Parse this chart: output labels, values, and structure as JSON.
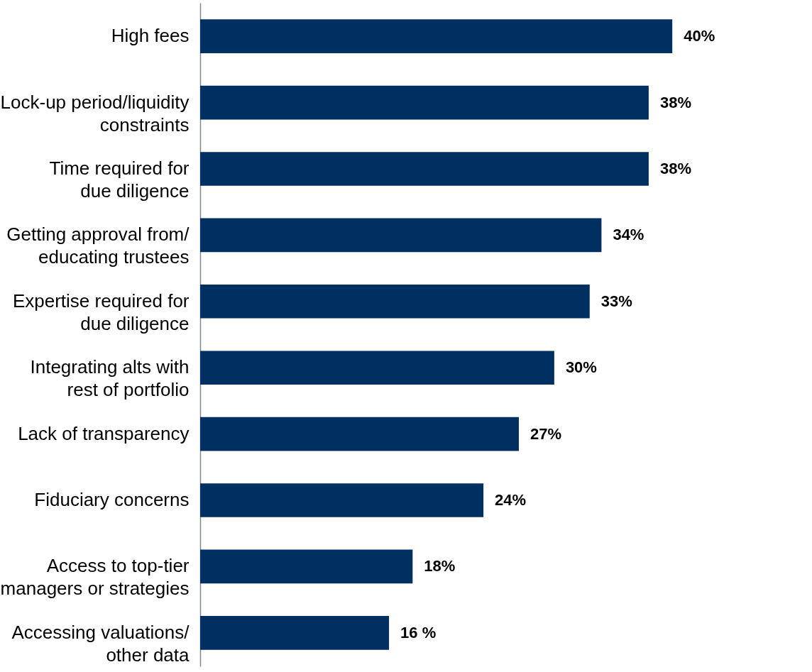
{
  "chart_data": {
    "type": "bar",
    "orientation": "horizontal",
    "categories": [
      "High fees",
      "Lock-up period/liquidity\nconstraints",
      "Time required for\ndue diligence",
      "Getting approval from/\neducating trustees",
      "Expertise required for\ndue diligence",
      "Integrating alts with\nrest of portfolio",
      "Lack of transparency",
      "Fiduciary concerns",
      "Access to top-tier\nmanagers or strategies",
      "Accessing valuations/\nother data"
    ],
    "values": [
      40,
      38,
      38,
      34,
      33,
      30,
      27,
      24,
      18,
      16
    ],
    "value_labels": [
      "40%",
      "38%",
      "38%",
      "34%",
      "33%",
      "30%",
      "27%",
      "24%",
      "18%",
      "16 %"
    ],
    "color": "#003062"
  }
}
